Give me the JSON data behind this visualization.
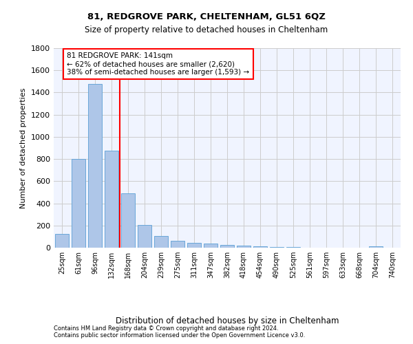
{
  "title": "81, REDGROVE PARK, CHELTENHAM, GL51 6QZ",
  "subtitle": "Size of property relative to detached houses in Cheltenham",
  "xlabel": "Distribution of detached houses by size in Cheltenham",
  "ylabel": "Number of detached properties",
  "footnote1": "Contains HM Land Registry data © Crown copyright and database right 2024.",
  "footnote2": "Contains public sector information licensed under the Open Government Licence v3.0.",
  "categories": [
    "25sqm",
    "61sqm",
    "96sqm",
    "132sqm",
    "168sqm",
    "204sqm",
    "239sqm",
    "275sqm",
    "311sqm",
    "347sqm",
    "382sqm",
    "418sqm",
    "454sqm",
    "490sqm",
    "525sqm",
    "561sqm",
    "597sqm",
    "633sqm",
    "668sqm",
    "704sqm",
    "740sqm"
  ],
  "values": [
    125,
    800,
    1475,
    875,
    490,
    205,
    105,
    65,
    45,
    35,
    25,
    20,
    10,
    5,
    5,
    3,
    3,
    2,
    2,
    15,
    2
  ],
  "bar_color": "#aec6e8",
  "bar_edge_color": "#5a9fd4",
  "red_line_bin": 3,
  "annotation_title": "81 REDGROVE PARK: 141sqm",
  "annotation_line1": "← 62% of detached houses are smaller (2,620)",
  "annotation_line2": "38% of semi-detached houses are larger (1,593) →",
  "ylim": [
    0,
    1800
  ],
  "yticks": [
    0,
    200,
    400,
    600,
    800,
    1000,
    1200,
    1400,
    1600,
    1800
  ],
  "plot_bg_color": "#f0f4ff"
}
